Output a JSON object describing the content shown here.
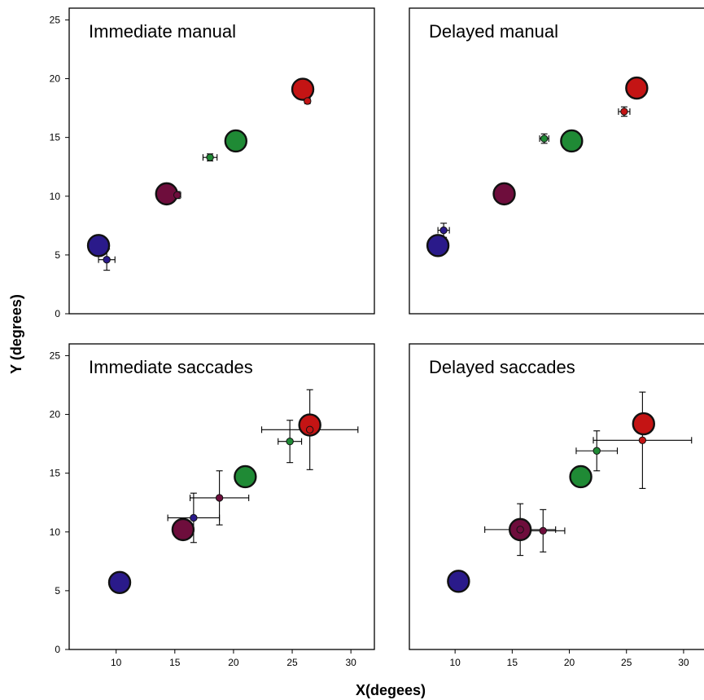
{
  "figure": {
    "ylabel": "Y (degrees)",
    "xlabel": "X(degees)"
  },
  "chart_data": [
    {
      "type": "scatter",
      "title": "Immediate manual",
      "xlim": [
        6,
        32
      ],
      "ylim": [
        0,
        26
      ],
      "xticks": [],
      "yticks": [
        "0",
        "5",
        "10",
        "15",
        "20",
        "25"
      ],
      "targets": [
        {
          "x": 8.5,
          "y": 5.8,
          "color": "#2a1a8a"
        },
        {
          "x": 14.3,
          "y": 10.2,
          "color": "#6e0d3c"
        },
        {
          "x": 20.2,
          "y": 14.7,
          "color": "#1f8a35"
        },
        {
          "x": 25.9,
          "y": 19.1,
          "color": "#c41414"
        }
      ],
      "responses": [
        {
          "x": 9.2,
          "y": 4.6,
          "xerr": 0.7,
          "yerr": 0.9,
          "color": "#2a1a8a"
        },
        {
          "x": 15.2,
          "y": 10.1,
          "xerr": 0.3,
          "yerr": 0.3,
          "color": "#6e0d3c"
        },
        {
          "x": 18.0,
          "y": 13.3,
          "xerr": 0.6,
          "yerr": 0.3,
          "color": "#1f8a35"
        },
        {
          "x": 26.3,
          "y": 18.1,
          "xerr": 0.2,
          "yerr": 0.2,
          "color": "#c41414"
        }
      ]
    },
    {
      "type": "scatter",
      "title": "Delayed manual",
      "xlim": [
        6,
        32
      ],
      "ylim": [
        0,
        26
      ],
      "xticks": [],
      "yticks": [],
      "targets": [
        {
          "x": 8.5,
          "y": 5.8,
          "color": "#2a1a8a"
        },
        {
          "x": 14.3,
          "y": 10.2,
          "color": "#6e0d3c"
        },
        {
          "x": 20.2,
          "y": 14.7,
          "color": "#1f8a35"
        },
        {
          "x": 25.9,
          "y": 19.2,
          "color": "#c41414"
        }
      ],
      "responses": [
        {
          "x": 9.0,
          "y": 7.1,
          "xerr": 0.5,
          "yerr": 0.6,
          "color": "#2a1a8a"
        },
        {
          "x": 17.8,
          "y": 14.9,
          "xerr": 0.4,
          "yerr": 0.4,
          "color": "#1f8a35"
        },
        {
          "x": 24.8,
          "y": 17.2,
          "xerr": 0.5,
          "yerr": 0.4,
          "color": "#c41414"
        }
      ]
    },
    {
      "type": "scatter",
      "title": "Immediate saccades",
      "xlim": [
        6,
        32
      ],
      "ylim": [
        0,
        26
      ],
      "xticks": [
        "10",
        "15",
        "20",
        "25",
        "30"
      ],
      "yticks": [
        "0",
        "5",
        "10",
        "15",
        "20",
        "25"
      ],
      "targets": [
        {
          "x": 10.3,
          "y": 5.7,
          "color": "#2a1a8a"
        },
        {
          "x": 15.7,
          "y": 10.2,
          "color": "#6e0d3c"
        },
        {
          "x": 21.0,
          "y": 14.7,
          "color": "#1f8a35"
        },
        {
          "x": 26.5,
          "y": 19.1,
          "color": "#c41414"
        }
      ],
      "responses": [
        {
          "x": 16.6,
          "y": 11.2,
          "xerr": 2.2,
          "yerr": 2.1,
          "color": "#2a1a8a"
        },
        {
          "x": 18.8,
          "y": 12.9,
          "xerr": 2.5,
          "yerr": 2.3,
          "color": "#6e0d3c"
        },
        {
          "x": 24.8,
          "y": 17.7,
          "xerr": 1.0,
          "yerr": 1.8,
          "color": "#1f8a35"
        },
        {
          "x": 26.5,
          "y": 18.7,
          "xerr": 4.1,
          "yerr": 3.4,
          "color": "#c41414"
        }
      ]
    },
    {
      "type": "scatter",
      "title": "Delayed saccades",
      "xlim": [
        6,
        32
      ],
      "ylim": [
        0,
        26
      ],
      "xticks": [
        "10",
        "15",
        "20",
        "25",
        "30"
      ],
      "yticks": [],
      "targets": [
        {
          "x": 10.3,
          "y": 5.8,
          "color": "#2a1a8a"
        },
        {
          "x": 15.7,
          "y": 10.2,
          "color": "#6e0d3c"
        },
        {
          "x": 21.0,
          "y": 14.7,
          "color": "#1f8a35"
        },
        {
          "x": 26.5,
          "y": 19.2,
          "color": "#c41414"
        }
      ],
      "responses": [
        {
          "x": 15.7,
          "y": 10.2,
          "xerr": 3.1,
          "yerr": 2.2,
          "color": "#6e0d3c"
        },
        {
          "x": 17.7,
          "y": 10.1,
          "xerr": 1.9,
          "yerr": 1.8,
          "color": "#6e0d3c"
        },
        {
          "x": 22.4,
          "y": 16.9,
          "xerr": 1.8,
          "yerr": 1.7,
          "color": "#1f8a35"
        },
        {
          "x": 26.4,
          "y": 17.8,
          "xerr": 4.3,
          "yerr": 4.1,
          "color": "#c41414"
        }
      ]
    }
  ]
}
